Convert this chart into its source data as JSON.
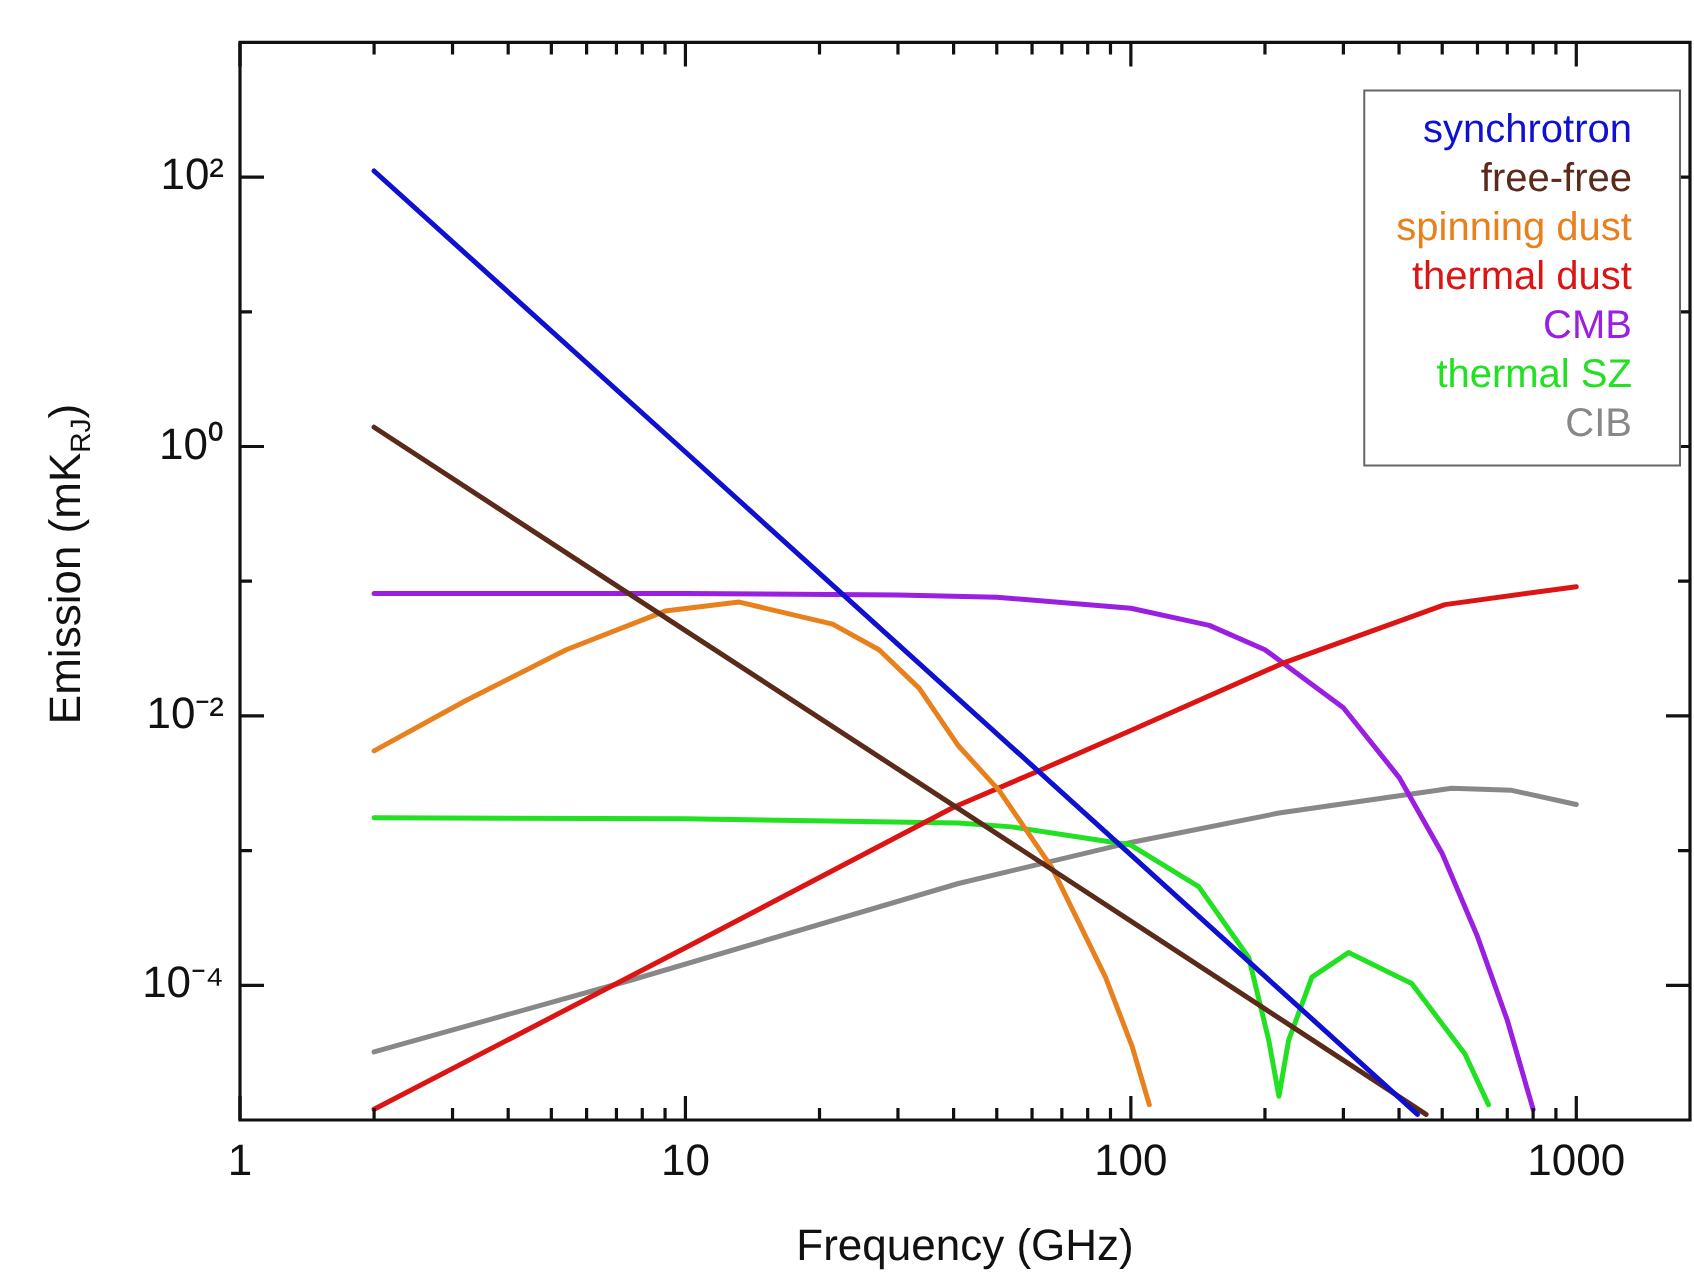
{
  "chart_data": {
    "type": "line",
    "xlabel": "Frequency (GHz)",
    "ylabel": "Emission (mK$_{RJ}$)",
    "log": "xy",
    "marker": "none",
    "legend": "top right",
    "xlim": [
      1,
      1800
    ],
    "ylim": [
      1e-05,
      1000
    ],
    "xticks": [
      1,
      {
        "value": 2,
        "label": null
      },
      {
        "value": 3,
        "label": null
      },
      {
        "value": 4,
        "label": null
      },
      {
        "value": 5,
        "label": null
      },
      {
        "value": 6,
        "label": null
      },
      {
        "value": 7,
        "label": null
      },
      {
        "value": 8,
        "label": null
      },
      {
        "value": 9,
        "label": null
      },
      10,
      {
        "value": 20,
        "label": null
      },
      {
        "value": 30,
        "label": null
      },
      {
        "value": 40,
        "label": null
      },
      {
        "value": 50,
        "label": null
      },
      {
        "value": 60,
        "label": null
      },
      {
        "value": 70,
        "label": null
      },
      {
        "value": 80,
        "label": null
      },
      {
        "value": 90,
        "label": null
      },
      100,
      {
        "value": 200,
        "label": null
      },
      {
        "value": 300,
        "label": null
      },
      {
        "value": 400,
        "label": null
      },
      {
        "value": 500,
        "label": null
      },
      {
        "value": 600,
        "label": null
      },
      {
        "value": 700,
        "label": null
      },
      {
        "value": 800,
        "label": null
      },
      {
        "value": 900,
        "label": null
      },
      1000
    ],
    "yticks": [
      {
        "value": 0.0001,
        "label": "10⁻⁴"
      },
      {
        "value": 0.001,
        "label": null
      },
      {
        "value": 0.01,
        "label": "10⁻²"
      },
      {
        "value": 0.1,
        "label": null
      },
      {
        "value": 1,
        "label": "10⁰"
      },
      {
        "value": 10,
        "label": null
      },
      {
        "value": 100,
        "label": "10²"
      }
    ],
    "series": [
      {
        "name": "synchrotron",
        "color": "#1010d0",
        "x": [
          2,
          10,
          100,
          440
        ],
        "values": [
          111,
          0.91,
          0.00093,
          1.1e-05
        ]
      },
      {
        "name": "free-free",
        "color": "#5a2a1a",
        "x": [
          2,
          10,
          100,
          460
        ],
        "values": [
          1.39,
          0.043,
          0.0003,
          1.1e-05
        ]
      },
      {
        "name": "spinning dust",
        "color": "#e8801e",
        "x": [
          2,
          3.2,
          5.4,
          9,
          13.2,
          21.4,
          27.2,
          33.5,
          41,
          50.6,
          66.6,
          87.7,
          100.7,
          110
        ],
        "values": [
          0.0055,
          0.0129,
          0.031,
          0.06,
          0.07,
          0.048,
          0.031,
          0.016,
          0.006,
          0.0028,
          0.00074,
          0.000115,
          3.5e-05,
          1.3e-05
        ]
      },
      {
        "name": "thermal dust",
        "color": "#dd1414",
        "x": [
          2,
          10,
          40,
          62,
          100,
          222,
          507,
          1000
        ],
        "values": [
          1.2e-05,
          0.00019,
          0.0021,
          0.0039,
          0.0078,
          0.025,
          0.067,
          0.091
        ]
      },
      {
        "name": "CMB",
        "color": "#9b1fe0",
        "x": [
          2,
          10,
          30,
          50,
          100,
          150,
          200,
          300,
          400,
          500,
          600,
          700,
          800
        ],
        "values": [
          0.081,
          0.081,
          0.079,
          0.076,
          0.063,
          0.047,
          0.031,
          0.0115,
          0.0035,
          0.00095,
          0.00023,
          5.5e-05,
          1.2e-05
        ]
      },
      {
        "name": "thermal SZ",
        "color": "#22e022",
        "x": [
          2,
          10,
          41,
          54,
          100,
          142,
          184,
          204,
          215,
          226,
          255,
          308,
          427,
          562,
          635
        ],
        "values": [
          0.00175,
          0.00172,
          0.0016,
          0.0015,
          0.0011,
          0.00054,
          0.00016,
          3.9e-05,
          1.5e-05,
          3.9e-05,
          0.000115,
          0.000175,
          0.000103,
          3.1e-05,
          1.3e-05
        ]
      },
      {
        "name": "CIB",
        "color": "#888888",
        "x": [
          2,
          7.6,
          41,
          100,
          215,
          525,
          716,
          1000
        ],
        "values": [
          3.2e-05,
          0.00011,
          0.00057,
          0.00115,
          0.0019,
          0.0029,
          0.0028,
          0.0022
        ]
      }
    ]
  }
}
